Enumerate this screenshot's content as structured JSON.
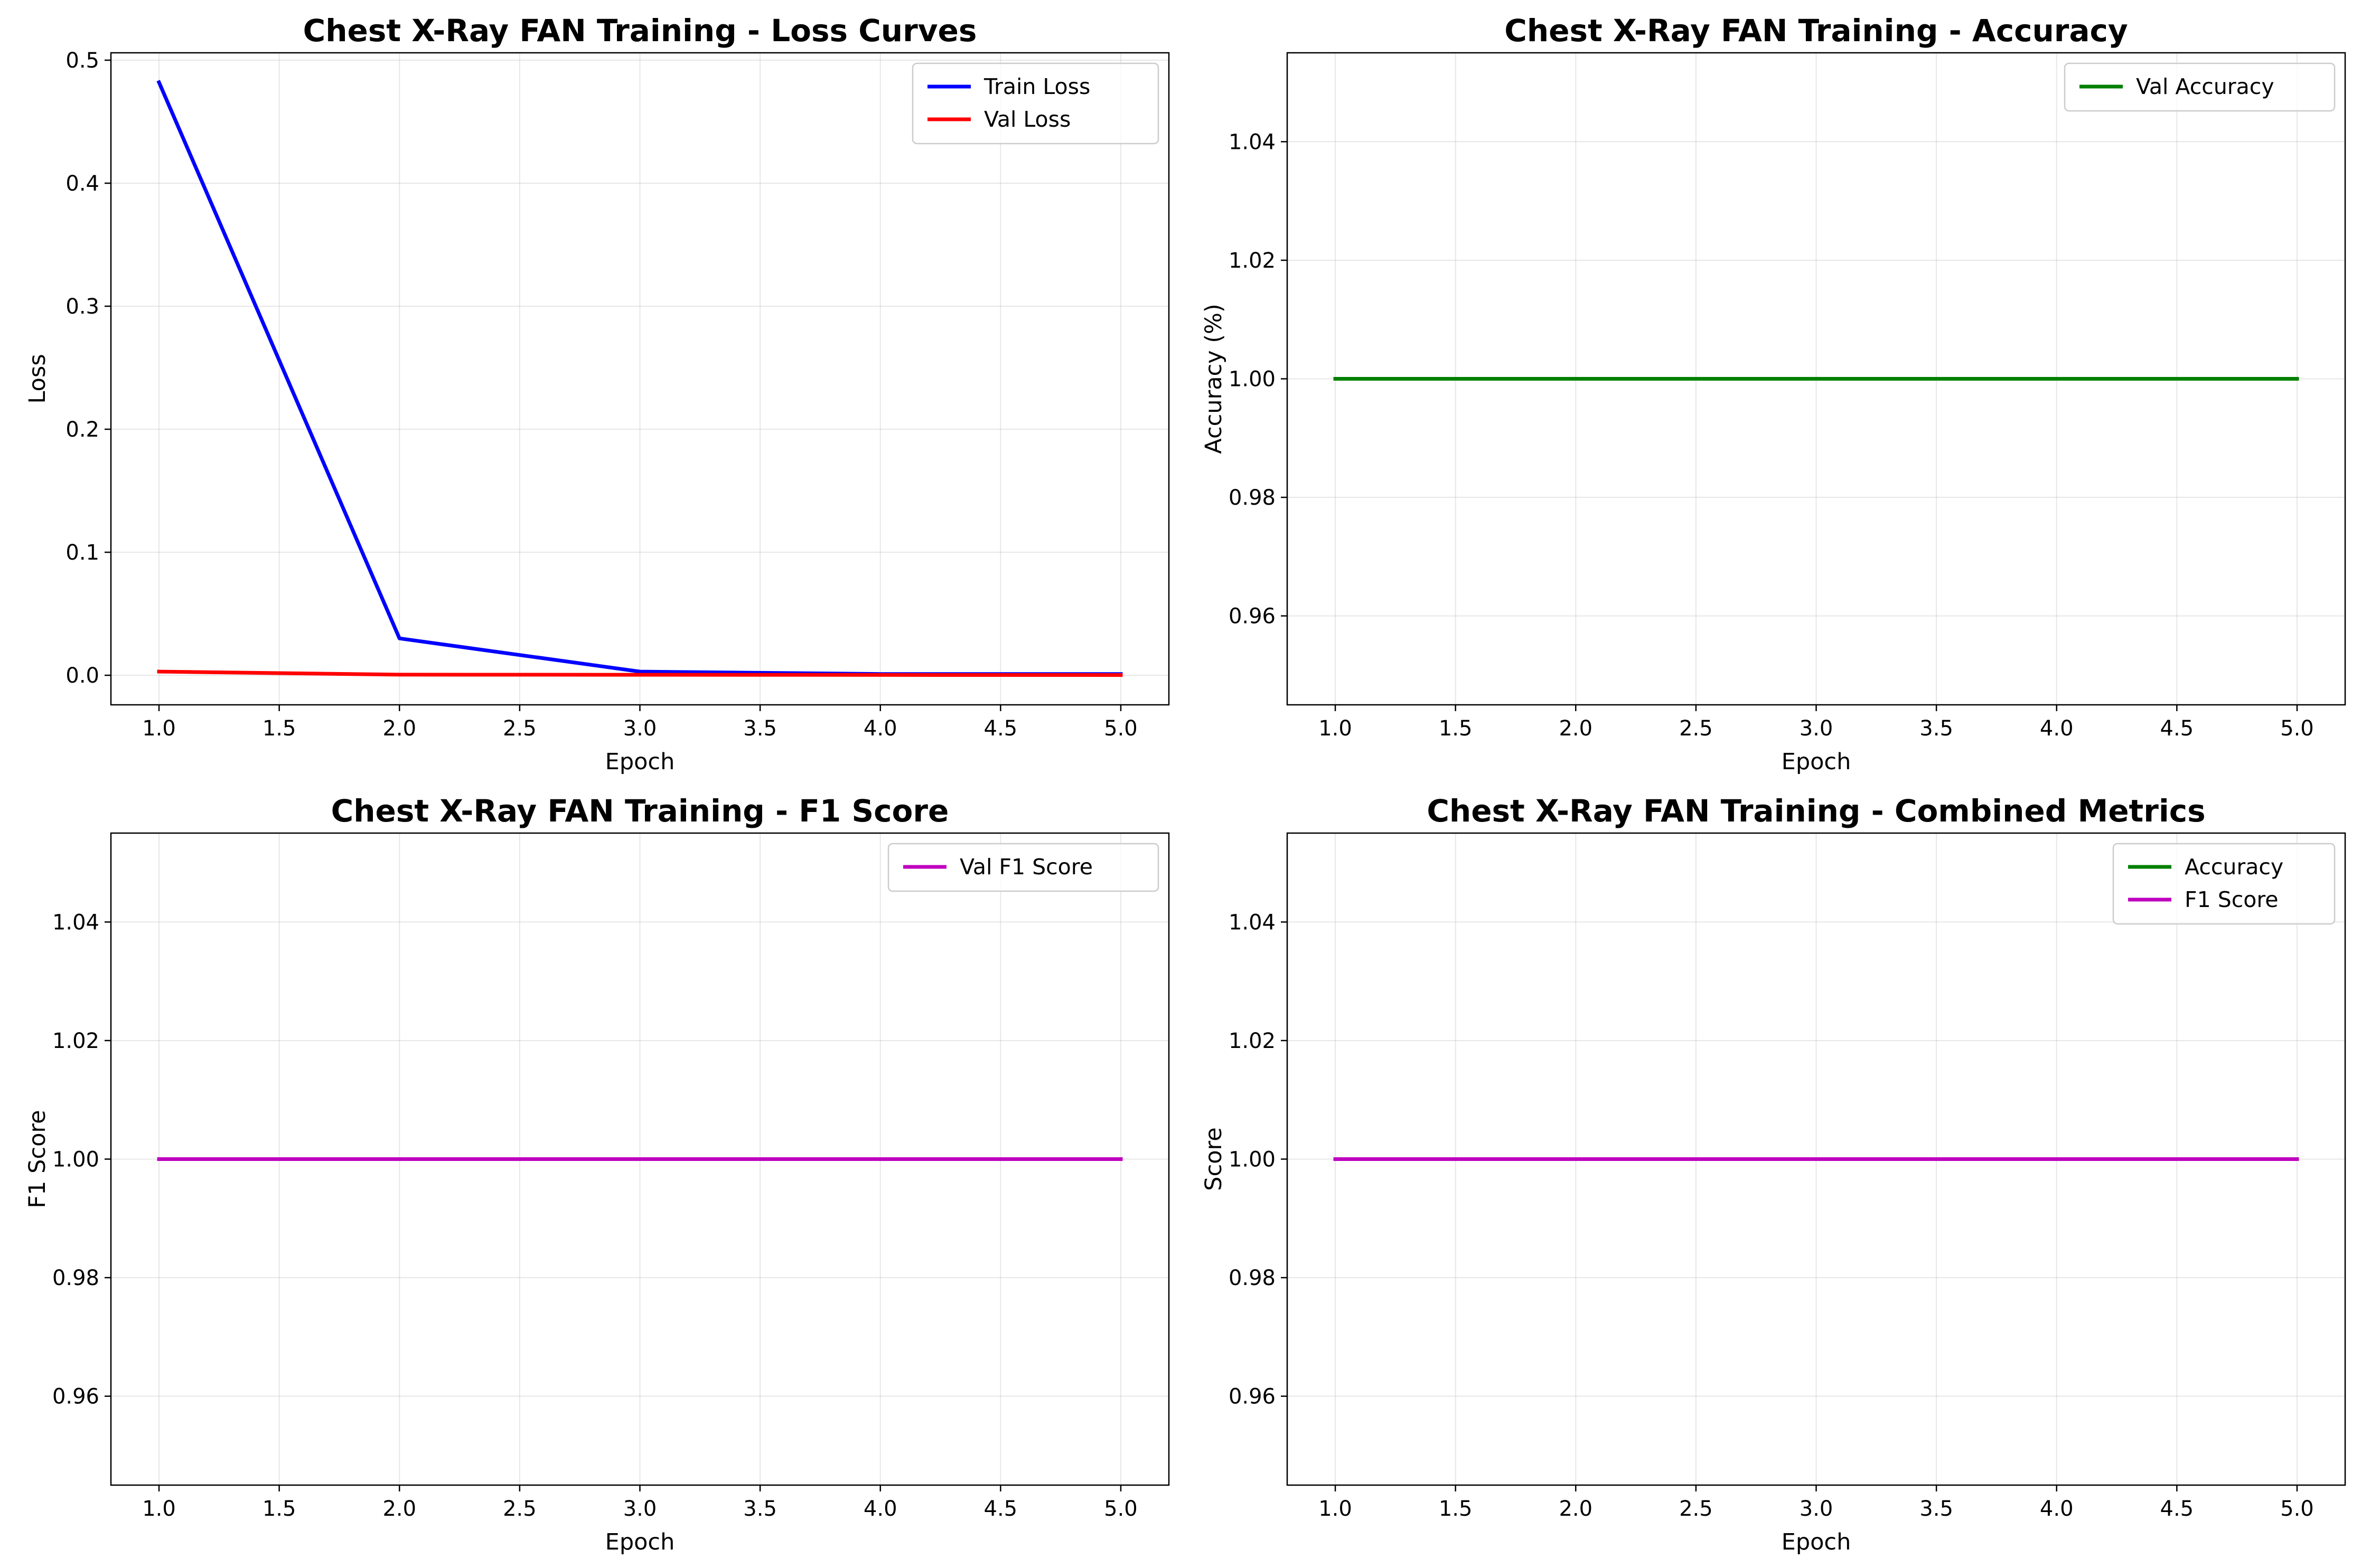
{
  "chart_data": [
    {
      "type": "line",
      "title": "Chest X-Ray FAN Training - Loss Curves",
      "xlabel": "Epoch",
      "ylabel": "Loss",
      "x": [
        1,
        2,
        3,
        4,
        5
      ],
      "series": [
        {
          "name": "Train Loss",
          "color": "#0000ff",
          "values": [
            0.482,
            0.03,
            0.003,
            0.001,
            0.001
          ]
        },
        {
          "name": "Val Loss",
          "color": "#ff0000",
          "values": [
            0.003,
            0.0005,
            0.0004,
            0.0003,
            0.0002
          ]
        }
      ],
      "xlim": [
        0.8,
        5.2
      ],
      "ylim": [
        -0.024,
        0.506
      ],
      "xticks": [
        1.0,
        1.5,
        2.0,
        2.5,
        3.0,
        3.5,
        4.0,
        4.5,
        5.0
      ],
      "xtick_labels": [
        "1.0",
        "1.5",
        "2.0",
        "2.5",
        "3.0",
        "3.5",
        "4.0",
        "4.5",
        "5.0"
      ],
      "yticks": [
        0.0,
        0.1,
        0.2,
        0.3,
        0.4,
        0.5
      ],
      "ytick_labels": [
        "0.0",
        "0.1",
        "0.2",
        "0.3",
        "0.4",
        "0.5"
      ],
      "grid": true,
      "legend": "top-right"
    },
    {
      "type": "line",
      "title": "Chest X-Ray FAN Training - Accuracy",
      "xlabel": "Epoch",
      "ylabel": "Accuracy (%)",
      "x": [
        1,
        2,
        3,
        4,
        5
      ],
      "series": [
        {
          "name": "Val Accuracy",
          "color": "#008000",
          "values": [
            1.0,
            1.0,
            1.0,
            1.0,
            1.0
          ]
        }
      ],
      "xlim": [
        0.8,
        5.2
      ],
      "ylim": [
        0.945,
        1.055
      ],
      "xticks": [
        1.0,
        1.5,
        2.0,
        2.5,
        3.0,
        3.5,
        4.0,
        4.5,
        5.0
      ],
      "xtick_labels": [
        "1.0",
        "1.5",
        "2.0",
        "2.5",
        "3.0",
        "3.5",
        "4.0",
        "4.5",
        "5.0"
      ],
      "yticks": [
        0.96,
        0.98,
        1.0,
        1.02,
        1.04
      ],
      "ytick_labels": [
        "0.96",
        "0.98",
        "1.00",
        "1.02",
        "1.04"
      ],
      "grid": true,
      "legend": "top-right"
    },
    {
      "type": "line",
      "title": "Chest X-Ray FAN Training - F1 Score",
      "xlabel": "Epoch",
      "ylabel": "F1 Score",
      "x": [
        1,
        2,
        3,
        4,
        5
      ],
      "series": [
        {
          "name": "Val F1 Score",
          "color": "#bf00bf",
          "values": [
            1.0,
            1.0,
            1.0,
            1.0,
            1.0
          ]
        }
      ],
      "xlim": [
        0.8,
        5.2
      ],
      "ylim": [
        0.945,
        1.055
      ],
      "xticks": [
        1.0,
        1.5,
        2.0,
        2.5,
        3.0,
        3.5,
        4.0,
        4.5,
        5.0
      ],
      "xtick_labels": [
        "1.0",
        "1.5",
        "2.0",
        "2.5",
        "3.0",
        "3.5",
        "4.0",
        "4.5",
        "5.0"
      ],
      "yticks": [
        0.96,
        0.98,
        1.0,
        1.02,
        1.04
      ],
      "ytick_labels": [
        "0.96",
        "0.98",
        "1.00",
        "1.02",
        "1.04"
      ],
      "grid": true,
      "legend": "top-right"
    },
    {
      "type": "line",
      "title": "Chest X-Ray FAN Training - Combined Metrics",
      "xlabel": "Epoch",
      "ylabel": "Score",
      "x": [
        1,
        2,
        3,
        4,
        5
      ],
      "series": [
        {
          "name": "Accuracy",
          "color": "#008000",
          "values": [
            1.0,
            1.0,
            1.0,
            1.0,
            1.0
          ]
        },
        {
          "name": "F1 Score",
          "color": "#bf00bf",
          "values": [
            1.0,
            1.0,
            1.0,
            1.0,
            1.0
          ]
        }
      ],
      "xlim": [
        0.8,
        5.2
      ],
      "ylim": [
        0.945,
        1.055
      ],
      "xticks": [
        1.0,
        1.5,
        2.0,
        2.5,
        3.0,
        3.5,
        4.0,
        4.5,
        5.0
      ],
      "xtick_labels": [
        "1.0",
        "1.5",
        "2.0",
        "2.5",
        "3.0",
        "3.5",
        "4.0",
        "4.5",
        "5.0"
      ],
      "yticks": [
        0.96,
        0.98,
        1.0,
        1.02,
        1.04
      ],
      "ytick_labels": [
        "0.96",
        "0.98",
        "1.00",
        "1.02",
        "1.04"
      ],
      "grid": true,
      "legend": "top-right"
    }
  ]
}
